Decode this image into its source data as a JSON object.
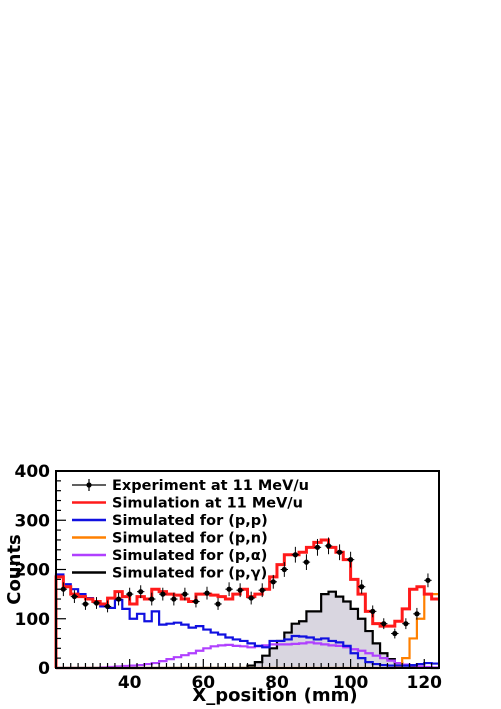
{
  "chart_data": {
    "type": "line",
    "xlabel": "X_position  (mm)",
    "ylabel": "Counts",
    "xlim": [
      20,
      124
    ],
    "ylim": [
      0,
      400
    ],
    "x_ticks": [
      "40",
      "60",
      "80",
      "100",
      "120"
    ],
    "y_ticks": [
      "0",
      "100",
      "200",
      "300",
      "400"
    ],
    "legend_placement": "top-left",
    "bin_edges": [
      20,
      22,
      24,
      26,
      28,
      30,
      32,
      34,
      36,
      38,
      40,
      42,
      44,
      46,
      48,
      50,
      52,
      54,
      56,
      58,
      60,
      62,
      64,
      66,
      68,
      70,
      72,
      74,
      76,
      78,
      80,
      82,
      84,
      86,
      88,
      90,
      92,
      94,
      96,
      98,
      100,
      102,
      104,
      106,
      108,
      110,
      112,
      114,
      116,
      118,
      120,
      122,
      124
    ],
    "series": [
      {
        "name": "Experiment at 11 MeV/u",
        "kind": "points",
        "color": "#000000",
        "x": [
          22,
          25,
          28,
          31,
          34,
          37,
          40,
          43,
          46,
          49,
          52,
          55,
          58,
          61,
          64,
          67,
          70,
          73,
          76,
          79,
          82,
          85,
          88,
          91,
          94,
          97,
          100,
          103,
          106,
          109,
          112,
          115,
          118,
          121
        ],
        "y": [
          160,
          145,
          130,
          132,
          125,
          140,
          150,
          155,
          140,
          150,
          140,
          150,
          135,
          152,
          130,
          160,
          158,
          142,
          158,
          175,
          200,
          230,
          215,
          245,
          248,
          235,
          220,
          165,
          115,
          90,
          70,
          90,
          110,
          178
        ],
        "err": [
          14,
          13,
          12,
          12,
          12,
          13,
          13,
          13,
          13,
          13,
          13,
          13,
          12,
          13,
          12,
          14,
          14,
          13,
          14,
          14,
          15,
          16,
          16,
          17,
          17,
          16,
          16,
          14,
          12,
          11,
          10,
          11,
          12,
          14
        ]
      },
      {
        "name": "Simulation at 11 MeV/u",
        "kind": "step",
        "color": "#ff1a1a",
        "values": [
          185,
          165,
          150,
          145,
          140,
          135,
          130,
          142,
          155,
          145,
          130,
          145,
          140,
          160,
          155,
          150,
          148,
          140,
          135,
          150,
          150,
          148,
          145,
          140,
          150,
          160,
          145,
          150,
          160,
          185,
          210,
          230,
          230,
          235,
          245,
          255,
          260,
          245,
          235,
          220,
          180,
          150,
          115,
          90,
          85,
          85,
          95,
          120,
          160,
          165,
          150,
          140
        ]
      },
      {
        "name": "Simulated for (p,p)",
        "kind": "step",
        "color": "#1010e0",
        "values": [
          190,
          170,
          160,
          150,
          142,
          135,
          125,
          122,
          138,
          120,
          100,
          110,
          95,
          115,
          88,
          90,
          92,
          88,
          82,
          85,
          78,
          72,
          68,
          62,
          58,
          55,
          50,
          45,
          42,
          55,
          55,
          58,
          65,
          64,
          62,
          58,
          60,
          55,
          52,
          45,
          30,
          20,
          12,
          8,
          6,
          5,
          5,
          5,
          6,
          8,
          10,
          9
        ]
      },
      {
        "name": "Simulated for (p,n)",
        "kind": "step",
        "color": "#ff8000",
        "values": [
          0,
          0,
          0,
          0,
          0,
          0,
          0,
          0,
          0,
          0,
          0,
          0,
          0,
          0,
          0,
          0,
          0,
          0,
          0,
          0,
          0,
          0,
          0,
          0,
          0,
          0,
          0,
          0,
          0,
          0,
          0,
          0,
          0,
          0,
          0,
          0,
          0,
          0,
          0,
          0,
          0,
          0,
          0,
          0,
          0,
          0,
          2,
          20,
          60,
          100,
          150,
          150
        ]
      },
      {
        "name": "Simulated for (p,α)",
        "kind": "step",
        "color": "#b040ff",
        "values": [
          0,
          0,
          0,
          0,
          0,
          0,
          1,
          2,
          3,
          4,
          5,
          6,
          8,
          10,
          14,
          18,
          22,
          26,
          30,
          35,
          40,
          44,
          46,
          47,
          45,
          44,
          42,
          44,
          46,
          48,
          48,
          48,
          49,
          50,
          52,
          50,
          48,
          46,
          45,
          42,
          38,
          35,
          30,
          25,
          20,
          15,
          10,
          7,
          5,
          3,
          2,
          1
        ]
      },
      {
        "name": "Simulated for (p,γ)",
        "kind": "step",
        "color": "#000000",
        "fill": "#d9d6e0",
        "values": [
          0,
          0,
          0,
          0,
          0,
          0,
          0,
          0,
          0,
          0,
          0,
          0,
          0,
          0,
          0,
          0,
          0,
          0,
          0,
          0,
          0,
          0,
          0,
          0,
          0,
          0,
          5,
          12,
          25,
          40,
          55,
          72,
          90,
          95,
          115,
          115,
          150,
          155,
          145,
          135,
          120,
          100,
          75,
          50,
          30,
          18,
          10,
          5,
          3,
          2,
          1,
          0
        ]
      }
    ]
  }
}
